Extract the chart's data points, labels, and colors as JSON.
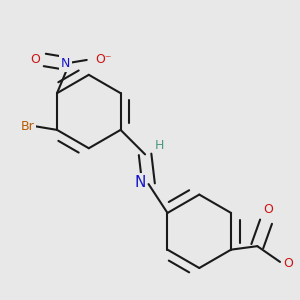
{
  "bg": "#e8e8e8",
  "bond_color": "#1a1a1a",
  "colors": {
    "N": "#1414cc",
    "O": "#cc1414",
    "Br": "#b85c00",
    "H": "#4a9a80",
    "C": "#1a1a1a"
  },
  "bond_lw": 1.5,
  "double_sep": 0.018,
  "font_size": 11,
  "font_size_sm": 9
}
